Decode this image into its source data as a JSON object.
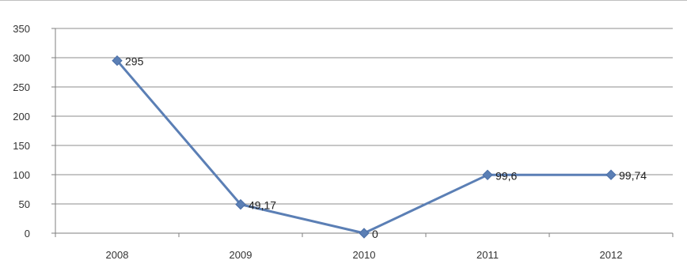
{
  "chart_data": {
    "type": "line",
    "categories": [
      "2008",
      "2009",
      "2010",
      "2011",
      "2012"
    ],
    "series": [
      {
        "values": [
          295,
          49.17,
          0,
          99.6,
          99.74
        ],
        "data_labels": [
          "295",
          "49,17",
          "0",
          "99,6",
          "99,74"
        ],
        "color": "#5b7fb5",
        "marker": "diamond"
      }
    ],
    "y_ticks": [
      "0",
      "50",
      "100",
      "150",
      "200",
      "250",
      "300",
      "350"
    ],
    "ylim": [
      0,
      350
    ],
    "grid": true,
    "legend": "none"
  }
}
